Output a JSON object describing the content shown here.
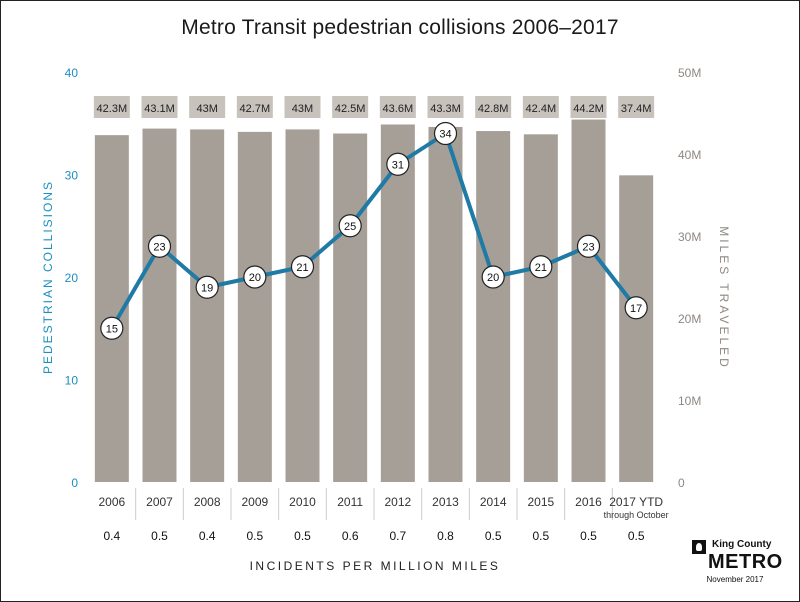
{
  "chart_data": {
    "type": "bar",
    "title": "Metro Transit pedestrian collisions 2006–2017",
    "categories": [
      "2006",
      "2007",
      "2008",
      "2009",
      "2010",
      "2011",
      "2012",
      "2013",
      "2014",
      "2015",
      "2016",
      "2017 YTD"
    ],
    "category_note": "through October",
    "left_axis": {
      "label": "PEDESTRIAN COLLISIONS",
      "ylim": [
        0,
        40
      ],
      "ticks": [
        "0",
        "10",
        "20",
        "30",
        "40"
      ]
    },
    "right_axis": {
      "label": "MILES TRAVELED",
      "ylim": [
        0,
        50
      ],
      "ticks": [
        "0",
        "10M",
        "20M",
        "30M",
        "40M",
        "50M"
      ]
    },
    "series": [
      {
        "name": "MILES TRAVELED",
        "type": "bar",
        "axis": "right",
        "values": [
          42.3,
          43.1,
          43,
          42.7,
          43,
          42.5,
          43.6,
          43.3,
          42.8,
          42.4,
          44.2,
          37.4
        ],
        "labels": [
          "42.3M",
          "43.1M",
          "43M",
          "42.7M",
          "43M",
          "42.5M",
          "43.6M",
          "43.3M",
          "42.8M",
          "42.4M",
          "44.2M",
          "37.4M"
        ]
      },
      {
        "name": "PEDESTRIAN COLLISIONS",
        "type": "line",
        "axis": "left",
        "values": [
          15,
          23,
          19,
          20,
          21,
          25,
          31,
          34,
          20,
          21,
          23,
          17
        ]
      }
    ],
    "rate_row": {
      "label": "INCIDENTS PER MILLION MILES",
      "values": [
        "0.4",
        "0.5",
        "0.4",
        "0.5",
        "0.5",
        "0.6",
        "0.7",
        "0.8",
        "0.5",
        "0.5",
        "0.5",
        "0.5"
      ]
    },
    "grid": false,
    "legend": "none"
  },
  "colors": {
    "bar": "#a69f98",
    "bar_label_bg": "#c8c2bd",
    "line": "#1f7aa6",
    "left_axis": "#1a8fc0",
    "right_axis": "#8e8782",
    "text": "#222222"
  },
  "logo": {
    "line1": "King County",
    "line2": "METRO"
  },
  "date": "November 2017"
}
